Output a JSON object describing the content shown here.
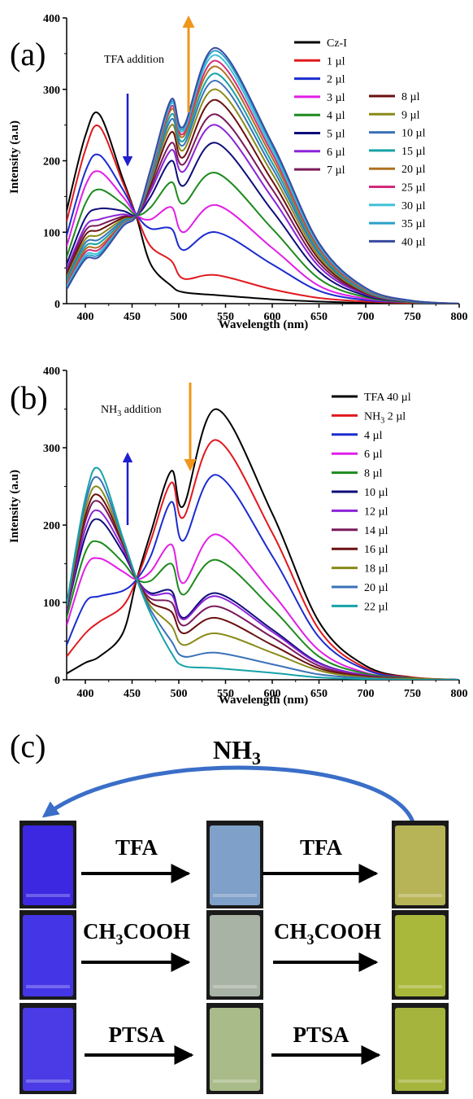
{
  "panels": [
    {
      "letter": "(a)",
      "annotation": "TFA addition",
      "xlabel": "Wavelength (nm)",
      "ylabel": "Intensity (a.u)",
      "x_ticks": [
        "400",
        "450",
        "500",
        "550",
        "600",
        "650",
        "700",
        "750",
        "800"
      ],
      "y_ticks": [
        "0",
        "100",
        "200",
        "300",
        "400"
      ],
      "legend_col1": [
        "Cz-I",
        "1 µl",
        "2 µl",
        "3 µl",
        "4 µl",
        "5 µl",
        "6 µl",
        "7 µl"
      ],
      "legend_col2": [
        "8 µl",
        "9 µl",
        "10 µl",
        "15 µl",
        "20 µl",
        "25 µl",
        "30 µl",
        "35 µl",
        "40 µl"
      ]
    },
    {
      "letter": "(b)",
      "annotation_main": "NH",
      "annotation_sub": "3",
      "annotation_tail": " addition",
      "xlabel": "Wavelength (nm)",
      "ylabel": "Intensity (a.u)",
      "x_ticks": [
        "400",
        "450",
        "500",
        "550",
        "600",
        "650",
        "700",
        "750",
        "800"
      ],
      "y_ticks": [
        "0",
        "100",
        "200",
        "300",
        "400"
      ],
      "legend_first": "TFA 40 µl",
      "legend_nh3_main": "NH",
      "legend_nh3_sub": "3",
      "legend_nh3_tail": " 2 µl",
      "legend_rest": [
        "4 µl",
        "6 µl",
        "8 µl",
        "10 µl",
        "12 µl",
        "14 µl",
        "16 µl",
        "18 µl",
        "20 µl",
        "22 µl"
      ]
    }
  ],
  "panel_c": {
    "letter": "(c)",
    "top_label_main": "NH",
    "top_label_sub": "3",
    "rows": [
      {
        "reagent1": "TFA",
        "reagent2": "TFA"
      },
      {
        "reagent1_main": "CH",
        "reagent1_sub": "3",
        "reagent1_tail": "COOH",
        "reagent2_main": "CH",
        "reagent2_sub": "3",
        "reagent2_tail": "COOH"
      },
      {
        "reagent1": "PTSA",
        "reagent2": "PTSA"
      }
    ],
    "vial_colors": [
      [
        "#3b28e0",
        "#7fa0c8",
        "#b7b458"
      ],
      [
        "#4436e6",
        "#a8b3a6",
        "#a9b83a"
      ],
      [
        "#4a3be6",
        "#aabb8a",
        "#a4b43c"
      ]
    ]
  },
  "chart_data": [
    {
      "type": "line",
      "panel": "(a)",
      "xlabel": "Wavelength (nm)",
      "ylabel": "Intensity (a.u)",
      "xlim": [
        380,
        800
      ],
      "ylim": [
        0,
        400
      ],
      "x": [
        380,
        400,
        415,
        440,
        455,
        470,
        492,
        505,
        540,
        600,
        650,
        700,
        750,
        800
      ],
      "series": [
        {
          "name": "Cz-I",
          "color": "#000000",
          "values": [
            130,
            235,
            265,
            175,
            120,
            55,
            25,
            16,
            12,
            6,
            3,
            1,
            0,
            0
          ]
        },
        {
          "name": "1 µl",
          "color": "#e0191e",
          "values": [
            115,
            215,
            248,
            170,
            122,
            80,
            60,
            35,
            40,
            20,
            8,
            3,
            1,
            0
          ]
        },
        {
          "name": "2 µl",
          "color": "#1b2bcf",
          "values": [
            95,
            185,
            208,
            160,
            124,
            105,
            105,
            75,
            100,
            55,
            18,
            5,
            2,
            0
          ]
        },
        {
          "name": "3 µl",
          "color": "#e11ee6",
          "values": [
            80,
            165,
            185,
            150,
            124,
            118,
            135,
            100,
            138,
            78,
            25,
            7,
            2,
            0
          ]
        },
        {
          "name": "4 µl",
          "color": "#1d8a1d",
          "values": [
            65,
            140,
            160,
            140,
            124,
            135,
            170,
            140,
            183,
            105,
            35,
            9,
            2,
            0
          ]
        },
        {
          "name": "5 µl",
          "color": "#0d0d7a",
          "values": [
            55,
            120,
            133,
            130,
            124,
            150,
            200,
            165,
            225,
            130,
            45,
            11,
            3,
            0
          ]
        },
        {
          "name": "6 µl",
          "color": "#8b24d8",
          "values": [
            48,
            108,
            118,
            125,
            124,
            158,
            215,
            185,
            250,
            148,
            52,
            13,
            3,
            0
          ]
        },
        {
          "name": "7 µl",
          "color": "#7a1a5a",
          "values": [
            44,
            102,
            110,
            122,
            124,
            163,
            225,
            195,
            265,
            160,
            57,
            14,
            3,
            0
          ]
        },
        {
          "name": "8 µl",
          "color": "#6a1010",
          "values": [
            40,
            96,
            103,
            120,
            124,
            168,
            240,
            205,
            285,
            172,
            62,
            15,
            3,
            0
          ]
        },
        {
          "name": "9 µl",
          "color": "#8a8a1a",
          "values": [
            37,
            90,
            96,
            118,
            124,
            172,
            250,
            215,
            300,
            182,
            66,
            16,
            3,
            0
          ]
        },
        {
          "name": "10 µl",
          "color": "#3a72b8",
          "values": [
            34,
            85,
            90,
            116,
            124,
            175,
            258,
            222,
            312,
            190,
            70,
            17,
            3,
            0
          ]
        },
        {
          "name": "15 µl",
          "color": "#16a2a8",
          "values": [
            31,
            80,
            85,
            114,
            124,
            178,
            265,
            228,
            322,
            197,
            73,
            18,
            4,
            0
          ]
        },
        {
          "name": "20 µl",
          "color": "#b07020",
          "values": [
            28,
            76,
            80,
            112,
            124,
            181,
            272,
            234,
            332,
            204,
            76,
            19,
            4,
            0
          ]
        },
        {
          "name": "25 µl",
          "color": "#d22a7a",
          "values": [
            26,
            72,
            76,
            111,
            124,
            183,
            276,
            238,
            340,
            210,
            79,
            20,
            4,
            0
          ]
        },
        {
          "name": "30 µl",
          "color": "#40c0d8",
          "values": [
            24,
            68,
            72,
            110,
            124,
            185,
            280,
            242,
            348,
            215,
            81,
            21,
            4,
            0
          ]
        },
        {
          "name": "35 µl",
          "color": "#2aa0c8",
          "values": [
            22,
            65,
            69,
            109,
            124,
            187,
            283,
            245,
            354,
            220,
            83,
            21,
            4,
            0
          ]
        },
        {
          "name": "40 µl",
          "color": "#3a4aa0",
          "values": [
            20,
            62,
            66,
            108,
            124,
            189,
            286,
            248,
            358,
            224,
            85,
            22,
            4,
            0
          ]
        }
      ]
    },
    {
      "type": "line",
      "panel": "(b)",
      "xlabel": "Wavelength (nm)",
      "ylabel": "Intensity (a.u)",
      "xlim": [
        380,
        800
      ],
      "ylim": [
        0,
        400
      ],
      "x": [
        380,
        400,
        415,
        440,
        455,
        470,
        492,
        505,
        540,
        600,
        650,
        700,
        750,
        800
      ],
      "series": [
        {
          "name": "TFA 40 µl",
          "color": "#000000",
          "values": [
            8,
            22,
            30,
            60,
            130,
            190,
            270,
            225,
            350,
            215,
            75,
            18,
            3,
            0
          ]
        },
        {
          "name": "NH3 2 µl",
          "color": "#e0191e",
          "values": [
            30,
            60,
            75,
            95,
            130,
            180,
            255,
            210,
            310,
            190,
            65,
            15,
            3,
            0
          ]
        },
        {
          "name": "4 µl",
          "color": "#1b2bcf",
          "values": [
            45,
            100,
            108,
            115,
            130,
            160,
            230,
            180,
            265,
            160,
            55,
            13,
            2,
            0
          ]
        },
        {
          "name": "6 µl",
          "color": "#e11ee6",
          "values": [
            70,
            145,
            157,
            140,
            130,
            140,
            175,
            125,
            188,
            112,
            38,
            9,
            2,
            0
          ]
        },
        {
          "name": "8 µl",
          "color": "#1d8a1d",
          "values": [
            80,
            165,
            178,
            152,
            130,
            128,
            150,
            110,
            155,
            92,
            30,
            8,
            2,
            0
          ]
        },
        {
          "name": "10 µl",
          "color": "#0d0d7a",
          "values": [
            88,
            185,
            207,
            165,
            130,
            112,
            115,
            80,
            112,
            65,
            22,
            6,
            1,
            0
          ]
        },
        {
          "name": "12 µl",
          "color": "#8b24d8",
          "values": [
            90,
            195,
            218,
            170,
            130,
            110,
            110,
            78,
            108,
            62,
            21,
            6,
            1,
            0
          ]
        },
        {
          "name": "14 µl",
          "color": "#7a1a5a",
          "values": [
            92,
            205,
            230,
            175,
            130,
            105,
            100,
            70,
            95,
            55,
            18,
            5,
            1,
            0
          ]
        },
        {
          "name": "16 µl",
          "color": "#6a1010",
          "values": [
            94,
            212,
            238,
            178,
            130,
            100,
            88,
            60,
            80,
            45,
            15,
            4,
            1,
            0
          ]
        },
        {
          "name": "18 µl",
          "color": "#8a8a1a",
          "values": [
            95,
            220,
            248,
            180,
            130,
            95,
            70,
            45,
            60,
            35,
            12,
            3,
            1,
            0
          ]
        },
        {
          "name": "20 µl",
          "color": "#3a72b8",
          "values": [
            96,
            228,
            260,
            182,
            130,
            90,
            50,
            30,
            35,
            20,
            7,
            2,
            0,
            0
          ]
        },
        {
          "name": "22 µl",
          "color": "#16a2a8",
          "values": [
            97,
            235,
            272,
            184,
            130,
            85,
            35,
            18,
            15,
            9,
            3,
            1,
            0,
            0
          ]
        }
      ]
    }
  ]
}
